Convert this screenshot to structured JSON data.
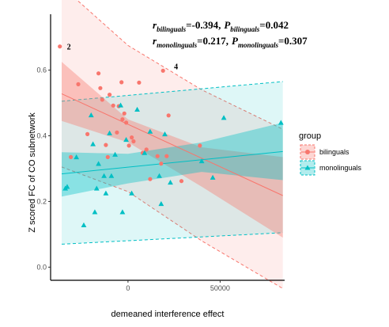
{
  "chart_data": {
    "type": "scatter",
    "xlabel": "demeaned interference effect",
    "ylabel": "Z scored FC of CO subnetwork",
    "xlim": [
      -42000,
      85000
    ],
    "ylim": [
      -0.04,
      0.77
    ],
    "x_ticks": [
      0,
      50000
    ],
    "y_ticks": [
      0.0,
      0.2,
      0.4,
      0.6
    ],
    "x_tick_labels": [
      "0",
      "50000"
    ],
    "y_tick_labels": [
      "0.0",
      "0.2",
      "0.4",
      "0.6"
    ],
    "grid": false,
    "legend": {
      "title": "group",
      "position": "right",
      "entries": [
        "bilinguals",
        "monolinguals"
      ]
    },
    "annotations": {
      "line1": {
        "r_label": "r",
        "r_sub": "bilinguals",
        "r_value": "=-0.394,",
        "p_label": "P",
        "p_sub": "bilinguals",
        "p_value": "=0.042"
      },
      "line2": {
        "r_label": "r",
        "r_sub": "monolinguals",
        "r_value": "=0.217,",
        "p_label": "P",
        "p_sub": "monolinguals",
        "p_value": "=0.307"
      },
      "point_labels": [
        {
          "text": "2",
          "x": -37000,
          "y": 0.672
        },
        {
          "text": "4",
          "x": 19000,
          "y": 0.598
        }
      ]
    },
    "series": [
      {
        "name": "bilinguals",
        "color": "#f8766d",
        "marker": "circle",
        "fit": {
          "x": [
            -36000,
            84000
          ],
          "y": [
            0.528,
            0.218
          ]
        },
        "ci": {
          "x": [
            -36000,
            0,
            40000,
            84000
          ],
          "upper": [
            0.625,
            0.45,
            0.365,
            0.335
          ],
          "lower": [
            0.445,
            0.38,
            0.245,
            0.09
          ]
        },
        "pi": {
          "x": [
            -36000,
            0,
            40000,
            84000
          ],
          "upper": [
            0.855,
            0.675,
            0.54,
            0.42
          ],
          "lower": [
            0.305,
            0.23,
            0.08,
            -0.065
          ]
        },
        "points": [
          {
            "x": -37000,
            "y": 0.672
          },
          {
            "x": -27000,
            "y": 0.557
          },
          {
            "x": -22000,
            "y": 0.405
          },
          {
            "x": -16000,
            "y": 0.59
          },
          {
            "x": -15000,
            "y": 0.545
          },
          {
            "x": -14000,
            "y": 0.51
          },
          {
            "x": -12000,
            "y": 0.372
          },
          {
            "x": -11000,
            "y": 0.335
          },
          {
            "x": -10000,
            "y": 0.525
          },
          {
            "x": -8000,
            "y": 0.492
          },
          {
            "x": -6000,
            "y": 0.41
          },
          {
            "x": -5000,
            "y": 0.49
          },
          {
            "x": -3500,
            "y": 0.563
          },
          {
            "x": -3000,
            "y": 0.45
          },
          {
            "x": -2000,
            "y": 0.468
          },
          {
            "x": -1000,
            "y": 0.44
          },
          {
            "x": 500,
            "y": 0.37
          },
          {
            "x": 2000,
            "y": 0.395
          },
          {
            "x": 3000,
            "y": 0.383
          },
          {
            "x": 6000,
            "y": 0.562
          },
          {
            "x": 8000,
            "y": 0.348
          },
          {
            "x": 10000,
            "y": 0.358
          },
          {
            "x": 12000,
            "y": 0.268
          },
          {
            "x": 16000,
            "y": 0.338
          },
          {
            "x": 18000,
            "y": 0.315
          },
          {
            "x": 19000,
            "y": 0.598
          },
          {
            "x": 21000,
            "y": 0.338
          },
          {
            "x": 22000,
            "y": 0.462
          },
          {
            "x": 29000,
            "y": 0.262
          },
          {
            "x": 39000,
            "y": 0.37
          },
          {
            "x": -31000,
            "y": 0.335
          }
        ]
      },
      {
        "name": "monolinguals",
        "color": "#00bfc4",
        "marker": "triangle",
        "fit": {
          "x": [
            -36000,
            84000
          ],
          "y": [
            0.284,
            0.352
          ]
        },
        "ci": {
          "x": [
            -36000,
            0,
            40000,
            84000
          ],
          "upper": [
            0.35,
            0.345,
            0.38,
            0.44
          ],
          "lower": [
            0.215,
            0.255,
            0.29,
            0.265
          ]
        },
        "pi": {
          "x": [
            -36000,
            84000
          ],
          "upper": [
            0.505,
            0.565
          ],
          "lower": [
            0.07,
            0.105
          ]
        },
        "points": [
          {
            "x": -34000,
            "y": 0.24
          },
          {
            "x": -33000,
            "y": 0.245
          },
          {
            "x": -28000,
            "y": 0.335
          },
          {
            "x": -24000,
            "y": 0.128
          },
          {
            "x": -20000,
            "y": 0.463
          },
          {
            "x": -19000,
            "y": 0.375
          },
          {
            "x": -18000,
            "y": 0.168
          },
          {
            "x": -17000,
            "y": 0.24
          },
          {
            "x": -16000,
            "y": 0.315
          },
          {
            "x": -13000,
            "y": 0.278
          },
          {
            "x": -12000,
            "y": 0.225
          },
          {
            "x": -10000,
            "y": 0.408
          },
          {
            "x": -9000,
            "y": 0.278
          },
          {
            "x": -7000,
            "y": 0.343
          },
          {
            "x": -4000,
            "y": 0.493
          },
          {
            "x": -3000,
            "y": 0.168
          },
          {
            "x": -1000,
            "y": 0.388
          },
          {
            "x": 2000,
            "y": 0.225
          },
          {
            "x": 5000,
            "y": 0.48
          },
          {
            "x": 9000,
            "y": 0.348
          },
          {
            "x": 12000,
            "y": 0.413
          },
          {
            "x": 17000,
            "y": 0.278
          },
          {
            "x": 18000,
            "y": 0.193
          },
          {
            "x": 20000,
            "y": 0.405
          },
          {
            "x": 23000,
            "y": 0.258
          },
          {
            "x": 40000,
            "y": 0.323
          },
          {
            "x": 46000,
            "y": 0.273
          },
          {
            "x": 52000,
            "y": 0.455
          },
          {
            "x": 83000,
            "y": 0.44
          }
        ]
      }
    ]
  }
}
